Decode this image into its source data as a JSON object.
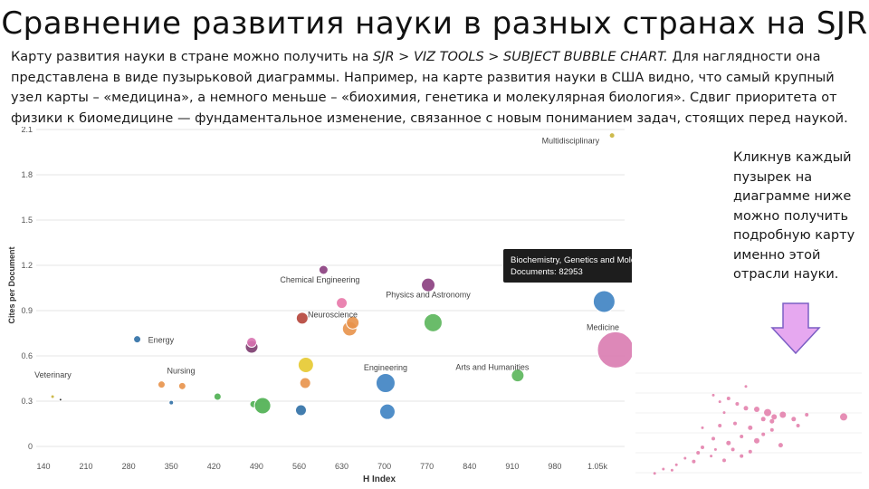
{
  "slide": {
    "title": "Сравнение развития науки в разных странах на SJR",
    "intro_before": "Карту развития науки в стране можно получить на ",
    "intro_path": "SJR > VIZ TOOLS > SUBJECT BUBBLE CHART.",
    "intro_after": " Для наглядности она представлена в виде пузырьковой диаграммы. Например, на карте развития науки в США видно, что самый крупный узел карты – «медицина», а немного меньше – «биохимия, генетика и молекулярная биология». Сдвиг приоритета от физики к биомедицине — фундаментальное изменение, связанное с новым пониманием задач, стоящих перед наукой.",
    "side_note": "Кликнув каждый пузырек на диаграмме ниже можно получить подробную карту именно этой отрасли науки."
  },
  "chart_data": {
    "type": "scatter",
    "xlabel": "H Index",
    "ylabel": "Cites per Document",
    "x_ticks": [
      "140",
      "210",
      "280",
      "350",
      "420",
      "490",
      "560",
      "630",
      "700",
      "770",
      "840",
      "910",
      "980",
      "1.05k"
    ],
    "y_ticks": [
      "0",
      "0.3",
      "0.6",
      "0.9",
      "1.2",
      "1.5",
      "1.8",
      "2.1"
    ],
    "xlim": [
      140,
      1090
    ],
    "ylim": [
      0,
      2.1
    ],
    "tooltip": {
      "title": "Biochemistry, Genetics and Molecular Biology",
      "documents": "Documents: 82953"
    },
    "points": [
      {
        "x": 155,
        "y": 0.33,
        "r": 2,
        "color": "#c8b33a"
      },
      {
        "x": 168,
        "y": 0.31,
        "r": 1.5,
        "color": "#222222"
      },
      {
        "x": 294,
        "y": 0.71,
        "r": 4,
        "color": "#2f6fa5",
        "label": "Energy"
      },
      {
        "x": 334,
        "y": 0.41,
        "r": 4,
        "color": "#e8924a",
        "label": "Nursing"
      },
      {
        "x": 350,
        "y": 0.29,
        "r": 2.5,
        "color": "#2f6fa5"
      },
      {
        "x": 368,
        "y": 0.4,
        "r": 4,
        "color": "#e8924a"
      },
      {
        "x": 426,
        "y": 0.33,
        "r": 4,
        "color": "#4caf50"
      },
      {
        "x": 482,
        "y": 0.66,
        "r": 7,
        "color": "#7b3b6e"
      },
      {
        "x": 482,
        "y": 0.69,
        "r": 5.5,
        "color": "#d872b0"
      },
      {
        "x": 485,
        "y": 0.28,
        "r": 4,
        "color": "#4caf50"
      },
      {
        "x": 500,
        "y": 0.27,
        "r": 9,
        "color": "#4caf50"
      },
      {
        "x": 563,
        "y": 0.24,
        "r": 6,
        "color": "#2f6fa5"
      },
      {
        "x": 565,
        "y": 0.85,
        "r": 6.5,
        "color": "#b5443a"
      },
      {
        "x": 570,
        "y": 0.42,
        "r": 6,
        "color": "#e8924a"
      },
      {
        "x": 571,
        "y": 0.54,
        "r": 8.5,
        "color": "#e5c92f"
      },
      {
        "x": 600,
        "y": 1.17,
        "r": 5,
        "color": "#8a3d7e",
        "label": "Chemical Engineering"
      },
      {
        "x": 630,
        "y": 0.95,
        "r": 6,
        "color": "#e877a8",
        "label": "Neuroscience"
      },
      {
        "x": 643,
        "y": 0.78,
        "r": 8,
        "color": "#e8924a"
      },
      {
        "x": 648,
        "y": 0.82,
        "r": 7,
        "color": "#e8924a"
      },
      {
        "x": 702,
        "y": 0.42,
        "r": 10.5,
        "color": "#3d82c2",
        "label": "Engineering"
      },
      {
        "x": 705,
        "y": 0.23,
        "r": 8.5,
        "color": "#3d82c2"
      },
      {
        "x": 772,
        "y": 1.07,
        "r": 7.5,
        "color": "#8a3d7e",
        "label": "Physics and Astronomy"
      },
      {
        "x": 780,
        "y": 0.82,
        "r": 10,
        "color": "#5ab55a"
      },
      {
        "x": 919,
        "y": 0.47,
        "r": 7,
        "color": "#5ab55a",
        "label": "Arts and Humanities"
      },
      {
        "x": 1061,
        "y": 0.96,
        "r": 12,
        "color": "#3d82c2"
      },
      {
        "x": 1074,
        "y": 2.06,
        "r": 3,
        "color": "#c8b33a",
        "label": "Multidisciplinary"
      },
      {
        "x": 1080,
        "y": 0.64,
        "r": 20,
        "color": "#d97bb0",
        "label": "Medicine"
      },
      {
        "x": 170,
        "y": 0.3,
        "r": 0,
        "color": "#000000",
        "label": "Veterinary"
      }
    ],
    "mini_points": [
      [
        0.35,
        0.78,
        1.5
      ],
      [
        0.42,
        0.75,
        2
      ],
      [
        0.38,
        0.72,
        1.5
      ],
      [
        0.46,
        0.7,
        2
      ],
      [
        0.5,
        0.66,
        2.5
      ],
      [
        0.4,
        0.62,
        1.5
      ],
      [
        0.55,
        0.65,
        3
      ],
      [
        0.6,
        0.62,
        4
      ],
      [
        0.63,
        0.58,
        3
      ],
      [
        0.58,
        0.56,
        2.5
      ],
      [
        0.67,
        0.6,
        3.5
      ],
      [
        0.45,
        0.52,
        2
      ],
      [
        0.3,
        0.48,
        1.5
      ],
      [
        0.38,
        0.5,
        2
      ],
      [
        0.52,
        0.48,
        2.5
      ],
      [
        0.62,
        0.46,
        2
      ],
      [
        0.48,
        0.4,
        2
      ],
      [
        0.35,
        0.38,
        2
      ],
      [
        0.42,
        0.34,
        2.5
      ],
      [
        0.3,
        0.3,
        2
      ],
      [
        0.36,
        0.28,
        1.5
      ],
      [
        0.44,
        0.28,
        2
      ],
      [
        0.28,
        0.25,
        2
      ],
      [
        0.34,
        0.22,
        1.5
      ],
      [
        0.22,
        0.2,
        1.5
      ],
      [
        0.26,
        0.17,
        2
      ],
      [
        0.18,
        0.14,
        1.5
      ],
      [
        0.12,
        0.1,
        1.5
      ],
      [
        0.16,
        0.09,
        1.5
      ],
      [
        0.08,
        0.06,
        1.5
      ],
      [
        0.55,
        0.36,
        3
      ],
      [
        0.72,
        0.56,
        2.5
      ],
      [
        0.78,
        0.6,
        2
      ],
      [
        0.74,
        0.5,
        2
      ],
      [
        0.66,
        0.32,
        2.5
      ],
      [
        0.48,
        0.22,
        2
      ],
      [
        0.52,
        0.26,
        2
      ],
      [
        0.4,
        0.18,
        2
      ],
      [
        0.95,
        0.58,
        4
      ],
      [
        0.5,
        0.86,
        1.5
      ],
      [
        0.62,
        0.54,
        2.5
      ],
      [
        0.58,
        0.42,
        2
      ]
    ]
  },
  "colors": {
    "accent_arrow": "#e6a8f0",
    "arrow_stroke": "#7b5fc4"
  }
}
